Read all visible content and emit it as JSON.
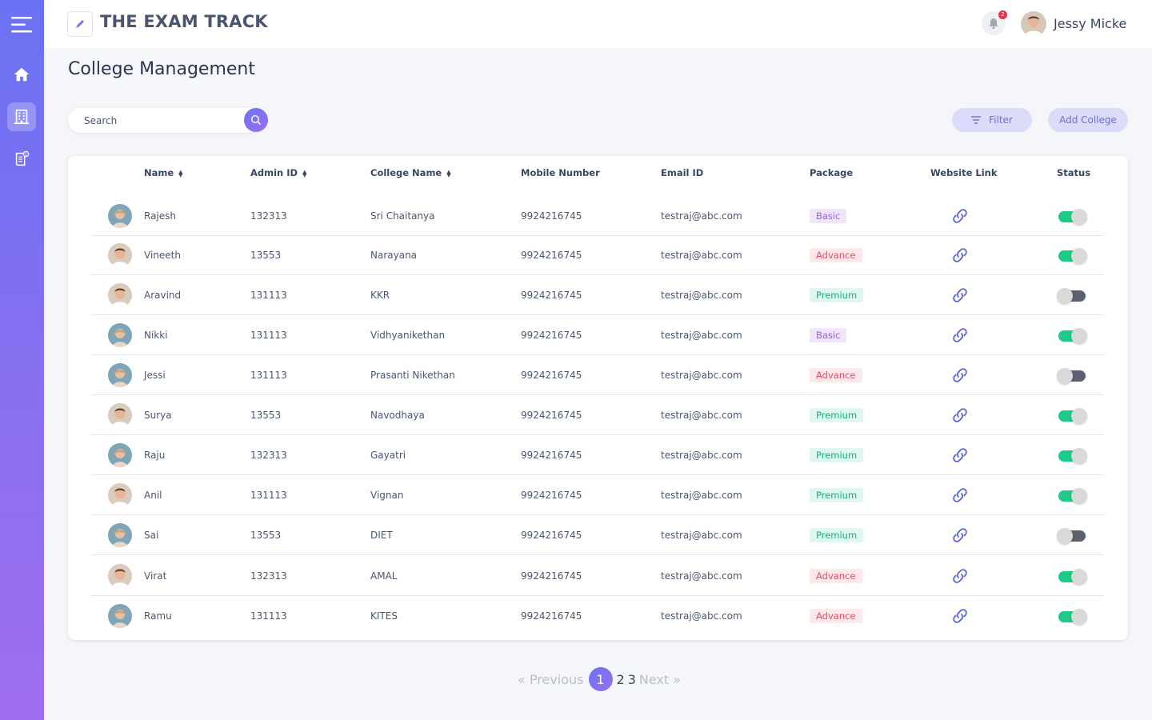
{
  "app": {
    "title": "THE EXAM TRACK",
    "user_name": "Jessy Micke",
    "notification_count": "2",
    "accent": "#7b6ff2"
  },
  "sidebar": {
    "items": [
      {
        "name": "menu",
        "icon": "menu-icon"
      },
      {
        "name": "home",
        "icon": "home-icon"
      },
      {
        "name": "college",
        "icon": "building-icon",
        "active": true
      },
      {
        "name": "payments",
        "icon": "invoice-icon"
      }
    ]
  },
  "page": {
    "title": "College Management"
  },
  "toolbar": {
    "search_placeholder": "Search",
    "filter_label": "Filter",
    "add_label": "Add College"
  },
  "table": {
    "headers": {
      "name": "Name",
      "admin_id": "Admin ID",
      "college": "College Name",
      "mobile": "Mobile Number",
      "email": "Email ID",
      "package": "Package",
      "website": "Website Link",
      "status": "Status"
    },
    "rows": [
      {
        "avatar": "female",
        "name": "Rajesh",
        "admin_id": "132313",
        "college": "Sri Chaitanya",
        "mobile": "9924216745",
        "email": "testraj@abc.com",
        "package": "Basic",
        "status": true
      },
      {
        "avatar": "male",
        "name": "Vineeth",
        "admin_id": "13553",
        "college": "Narayana",
        "mobile": "9924216745",
        "email": "testraj@abc.com",
        "package": "Advance",
        "status": true
      },
      {
        "avatar": "male",
        "name": "Aravind",
        "admin_id": "131113",
        "college": "KKR",
        "mobile": "9924216745",
        "email": "testraj@abc.com",
        "package": "Premium",
        "status": false
      },
      {
        "avatar": "female",
        "name": "Nikki",
        "admin_id": "131113",
        "college": "Vidhyanikethan",
        "mobile": "9924216745",
        "email": "testraj@abc.com",
        "package": "Basic",
        "status": true
      },
      {
        "avatar": "female",
        "name": "Jessi",
        "admin_id": "131113",
        "college": "Prasanti Nikethan",
        "mobile": "9924216745",
        "email": "testraj@abc.com",
        "package": "Advance",
        "status": false
      },
      {
        "avatar": "male",
        "name": "Surya",
        "admin_id": "13553",
        "college": "Navodhaya",
        "mobile": "9924216745",
        "email": "testraj@abc.com",
        "package": "Premium",
        "status": true
      },
      {
        "avatar": "female",
        "name": "Raju",
        "admin_id": "132313",
        "college": "Gayatri",
        "mobile": "9924216745",
        "email": "testraj@abc.com",
        "package": "Premium",
        "status": true
      },
      {
        "avatar": "male",
        "name": "Anil",
        "admin_id": "131113",
        "college": "Vignan",
        "mobile": "9924216745",
        "email": "testraj@abc.com",
        "package": "Premium",
        "status": true
      },
      {
        "avatar": "female",
        "name": "Sai",
        "admin_id": "13553",
        "college": "DIET",
        "mobile": "9924216745",
        "email": "testraj@abc.com",
        "package": "Premium",
        "status": false
      },
      {
        "avatar": "male",
        "name": "Virat",
        "admin_id": "132313",
        "college": "AMAL",
        "mobile": "9924216745",
        "email": "testraj@abc.com",
        "package": "Advance",
        "status": true
      },
      {
        "avatar": "female",
        "name": "Ramu",
        "admin_id": "131113",
        "college": "KITES",
        "mobile": "9924216745",
        "email": "testraj@abc.com",
        "package": "Advance",
        "status": true
      }
    ]
  },
  "pagination": {
    "previous": "« Previous",
    "current": "1",
    "pages": [
      "2",
      "3"
    ],
    "next": "Next »"
  }
}
